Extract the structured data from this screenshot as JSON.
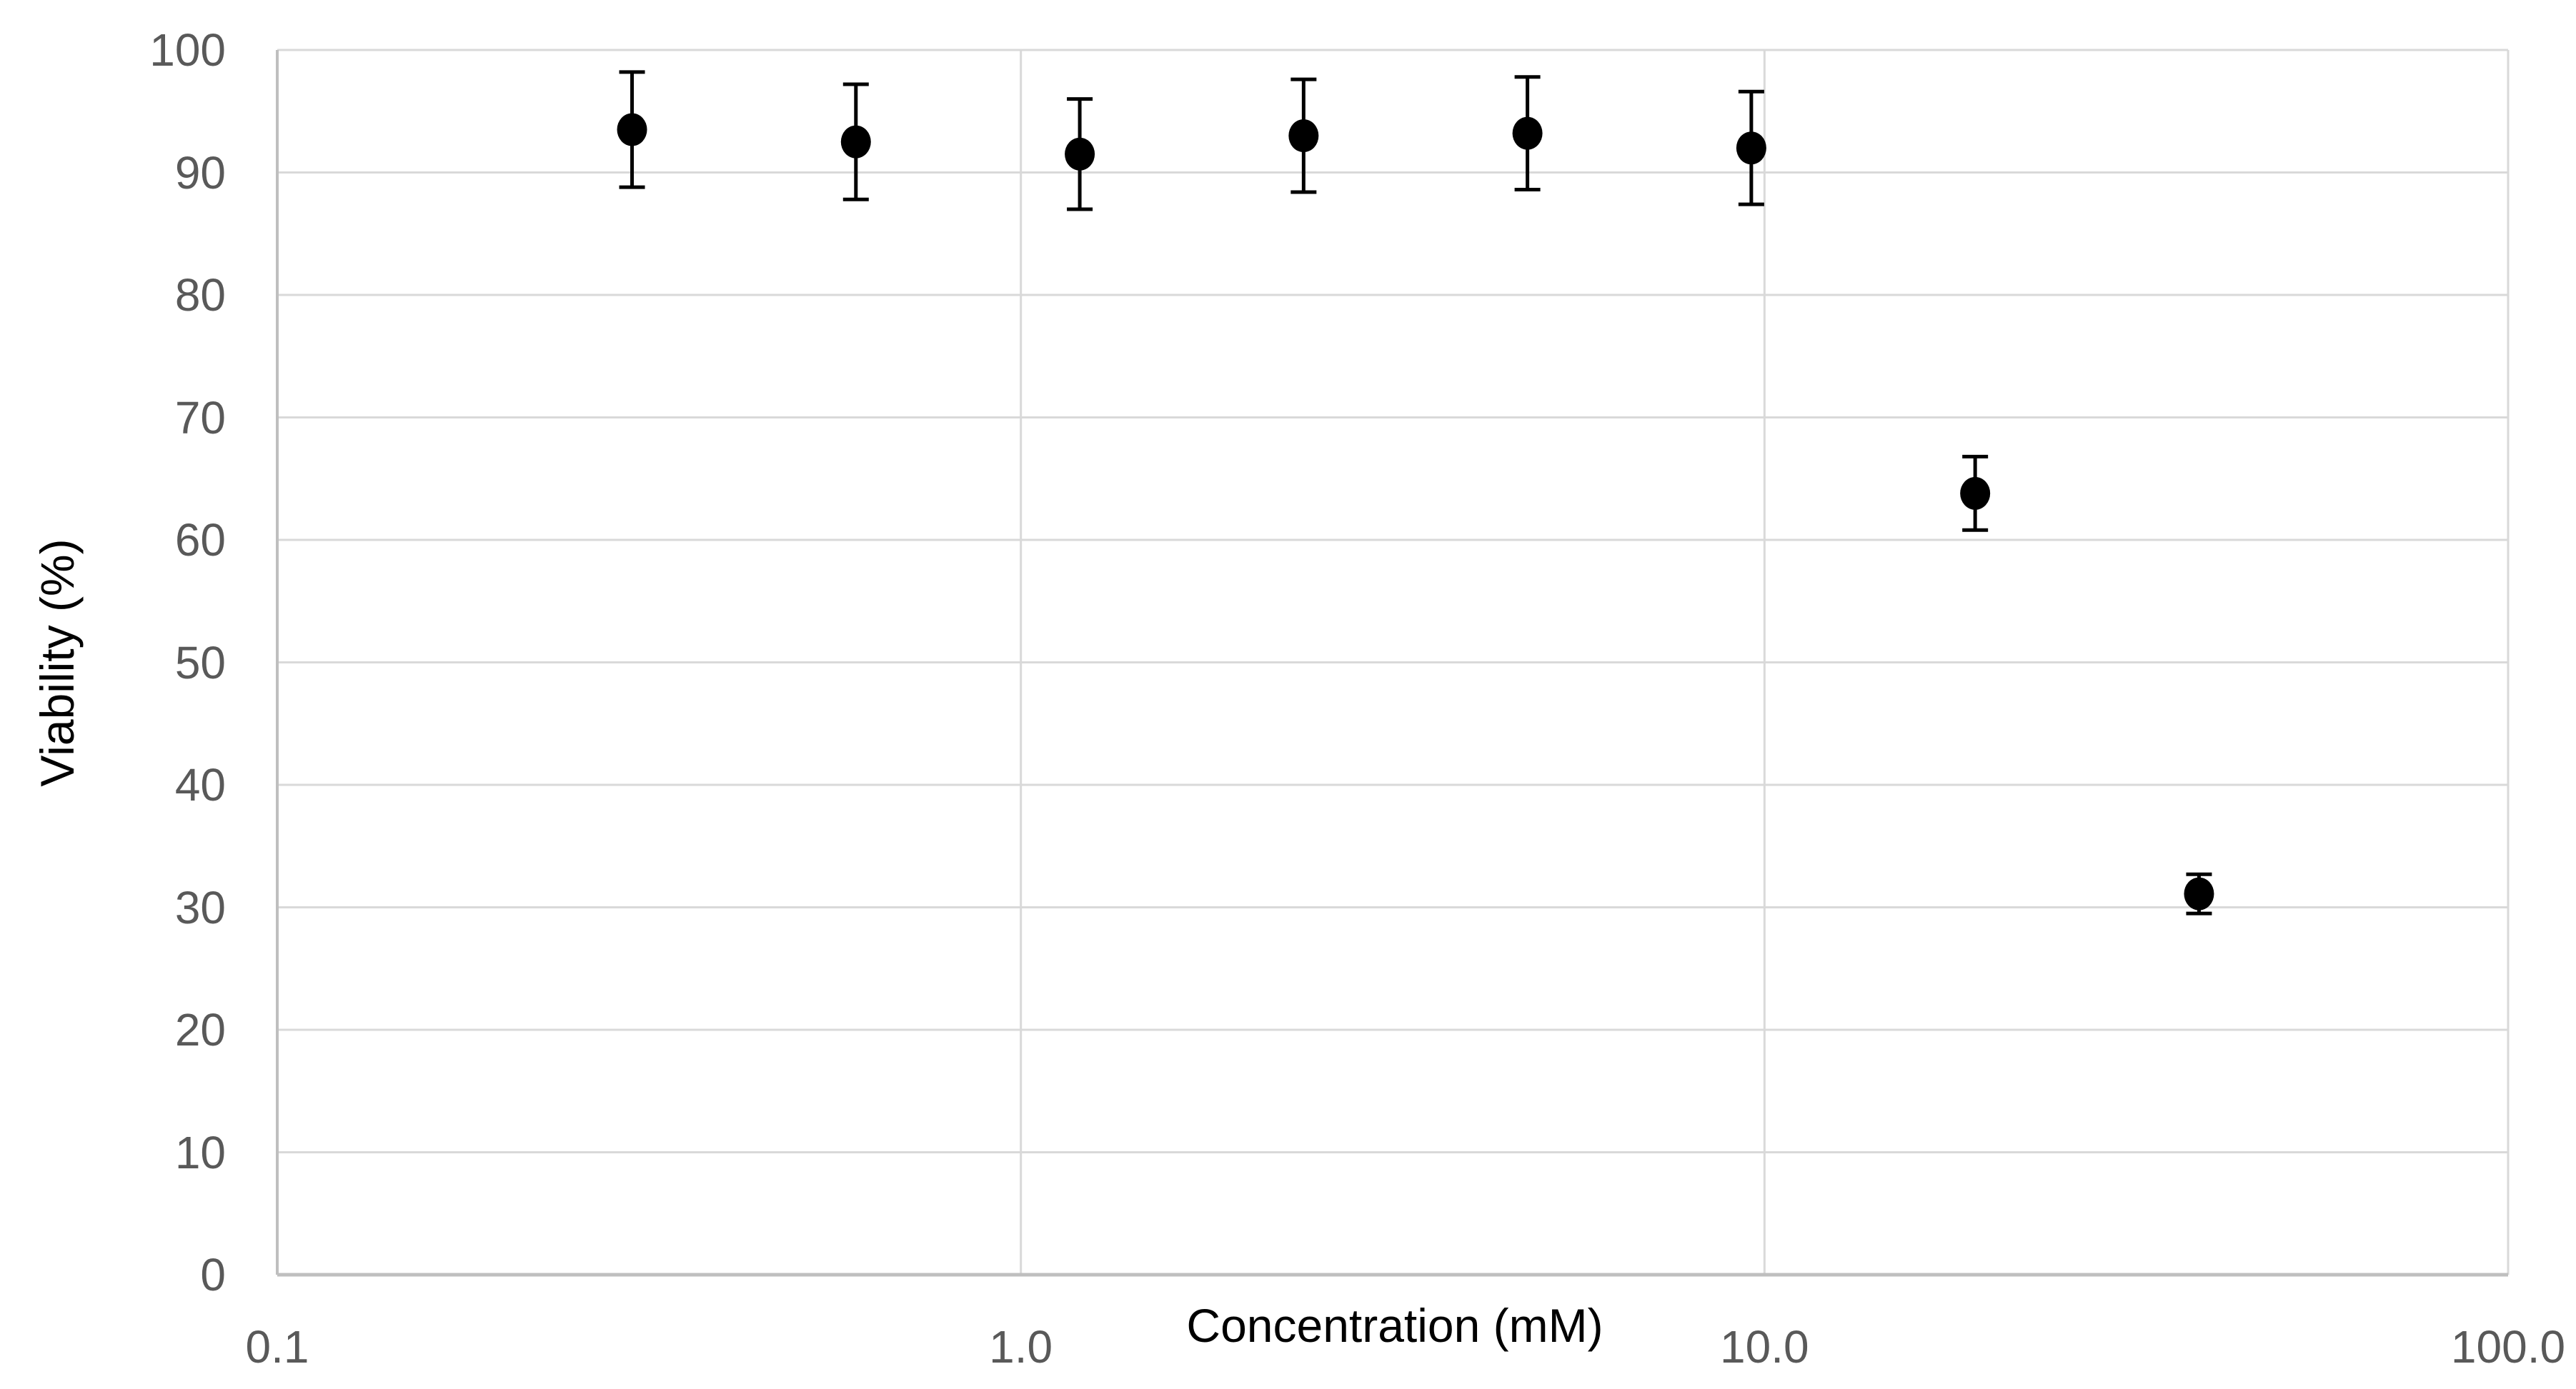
{
  "chart_data": {
    "type": "scatter",
    "title": "",
    "xlabel": "Concentration (mM)",
    "ylabel": "Viability (%)",
    "x_scale": "log10",
    "xlim": [
      0.1,
      100
    ],
    "ylim": [
      0,
      100
    ],
    "grid": true,
    "legend": "none",
    "x_tick_values": [
      0.1,
      1.0,
      10.0,
      100.0
    ],
    "x_tick_labels": [
      "0.1",
      "1.0",
      "10.0",
      "100.0"
    ],
    "y_tick_values": [
      100,
      90,
      80,
      70,
      60,
      50,
      40,
      30,
      20,
      10,
      0
    ],
    "y_tick_labels": [
      "100",
      "90",
      "80",
      "70",
      "60",
      "50",
      "40",
      "30",
      "20",
      "10",
      "0"
    ],
    "colors": {
      "marker": "#000000",
      "error_bar": "#000000",
      "gridline": "#d9d9d9",
      "axis_line": "#bfbfbf",
      "tick_label": "#595959",
      "axis_title": "#000000",
      "background": "#ffffff"
    },
    "series": [
      {
        "name": "Viability",
        "marker": "filled-black-circle",
        "points": [
          {
            "x": 0.3,
            "y": 93.5,
            "err": 4.7
          },
          {
            "x": 0.6,
            "y": 92.5,
            "err": 4.7
          },
          {
            "x": 1.2,
            "y": 91.5,
            "err": 4.5
          },
          {
            "x": 2.4,
            "y": 93.0,
            "err": 4.6
          },
          {
            "x": 4.8,
            "y": 93.2,
            "err": 4.6
          },
          {
            "x": 9.6,
            "y": 92.0,
            "err": 4.6
          },
          {
            "x": 19.2,
            "y": 63.8,
            "err": 3.0
          },
          {
            "x": 38.4,
            "y": 31.1,
            "err": 1.6
          }
        ]
      }
    ]
  }
}
